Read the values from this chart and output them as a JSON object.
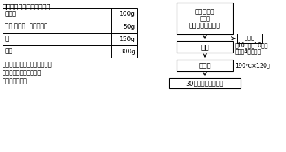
{
  "title": "表１．バッターの基本配合",
  "table_rows": [
    [
      "薄力粉",
      "100g"
    ],
    [
      "全卵 または  マヨネーズ",
      "50g"
    ],
    [
      "水",
      "150g"
    ],
    [
      "合計",
      "300g"
    ]
  ],
  "notes": [
    "マヨネーズ：卵黄型マヨネーズ",
    "エビ：大正エビ（冷凍）",
    "揚げ油：菜種油"
  ],
  "flow_box1_line1": "全卵・清水",
  "flow_box1_line2": "または",
  "flow_box1_line3": "マヨネーズ・清水",
  "flow_arrow_label": "薄力粉",
  "flow_box2": "撹拌",
  "flow_box2_note1": "左10回・右10回の",
  "flow_box2_note2": "撹拌を4回繰返す",
  "flow_box3": "揚げる",
  "flow_box3_note": "190℃×120秒",
  "flow_box4": "30分間放冷後　測定",
  "bg_color": "#ffffff",
  "text_color": "#000000",
  "box_color": "#ffffff",
  "box_edge": "#000000"
}
